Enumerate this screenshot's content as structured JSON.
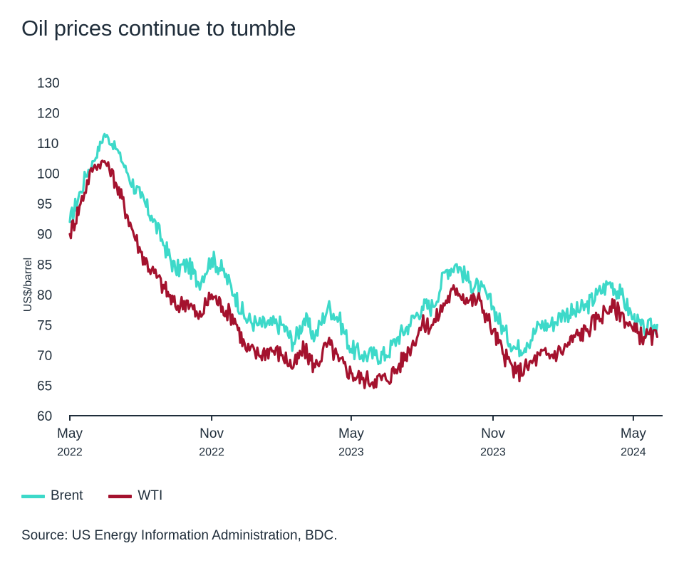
{
  "chart_data": {
    "type": "line",
    "title": "Oil prices continue to tumble",
    "ylabel": "US$/barrel",
    "xlabel": "",
    "ylim": [
      60,
      130
    ],
    "y_ticks": [
      60,
      65,
      70,
      75,
      80,
      85,
      90,
      95,
      100,
      110,
      120,
      130
    ],
    "x_range": [
      "2022-05",
      "2024-06"
    ],
    "x_ticks": [
      {
        "month": "May",
        "year": "2022",
        "date": "2022-05"
      },
      {
        "month": "Nov",
        "year": "2022",
        "date": "2022-11"
      },
      {
        "month": "May",
        "year": "2023",
        "date": "2023-05"
      },
      {
        "month": "Nov",
        "year": "2023",
        "date": "2023-11"
      },
      {
        "month": "May",
        "year": "2024",
        "date": "2024-05"
      }
    ],
    "grid": false,
    "legend_position": "bottom-left",
    "x": [
      "2022-05-01",
      "2022-05-15",
      "2022-06-01",
      "2022-06-15",
      "2022-07-01",
      "2022-07-15",
      "2022-08-01",
      "2022-08-15",
      "2022-09-01",
      "2022-09-15",
      "2022-10-01",
      "2022-10-15",
      "2022-11-01",
      "2022-11-15",
      "2022-12-01",
      "2022-12-15",
      "2023-01-01",
      "2023-01-15",
      "2023-02-01",
      "2023-02-15",
      "2023-03-01",
      "2023-03-15",
      "2023-04-01",
      "2023-04-15",
      "2023-05-01",
      "2023-05-15",
      "2023-06-01",
      "2023-06-15",
      "2023-07-01",
      "2023-07-15",
      "2023-08-01",
      "2023-08-15",
      "2023-09-01",
      "2023-09-15",
      "2023-10-01",
      "2023-10-15",
      "2023-11-01",
      "2023-11-15",
      "2023-12-01",
      "2023-12-15",
      "2024-01-01",
      "2024-01-15",
      "2024-02-01",
      "2024-02-15",
      "2024-03-01",
      "2024-03-15",
      "2024-04-01",
      "2024-04-15",
      "2024-05-01",
      "2024-05-15",
      "2024-06-01"
    ],
    "series": [
      {
        "name": "Brent",
        "color": "#3dd9c9",
        "values": [
          92,
          97,
          104,
          113,
          108,
          100,
          96,
          93,
          88,
          84,
          85,
          82,
          86,
          84,
          80,
          76,
          75,
          75,
          75,
          72,
          76,
          73,
          78,
          76,
          71,
          70,
          70,
          70,
          73,
          75,
          78,
          78,
          84,
          85,
          82,
          81,
          78,
          74,
          71,
          72,
          75,
          75,
          77,
          77,
          78,
          80,
          82,
          80,
          76,
          74,
          75
        ]
      },
      {
        "name": "WTI",
        "color": "#a4122e",
        "values": [
          90,
          95,
          102,
          104,
          98,
          93,
          87,
          84,
          81,
          78,
          79,
          76,
          80,
          78,
          76,
          71,
          70,
          71,
          70,
          68,
          71,
          68,
          72,
          69,
          67,
          66,
          66,
          66,
          68,
          71,
          75,
          75,
          79,
          81,
          79,
          79,
          74,
          70,
          67,
          68,
          70,
          70,
          71,
          73,
          74,
          76,
          78,
          77,
          74,
          73,
          73
        ]
      }
    ]
  },
  "legend": {
    "items": [
      {
        "label": "Brent",
        "color": "#3dd9c9"
      },
      {
        "label": "WTI",
        "color": "#a4122e"
      }
    ]
  },
  "source": "Source: US Energy Information Administration, BDC."
}
